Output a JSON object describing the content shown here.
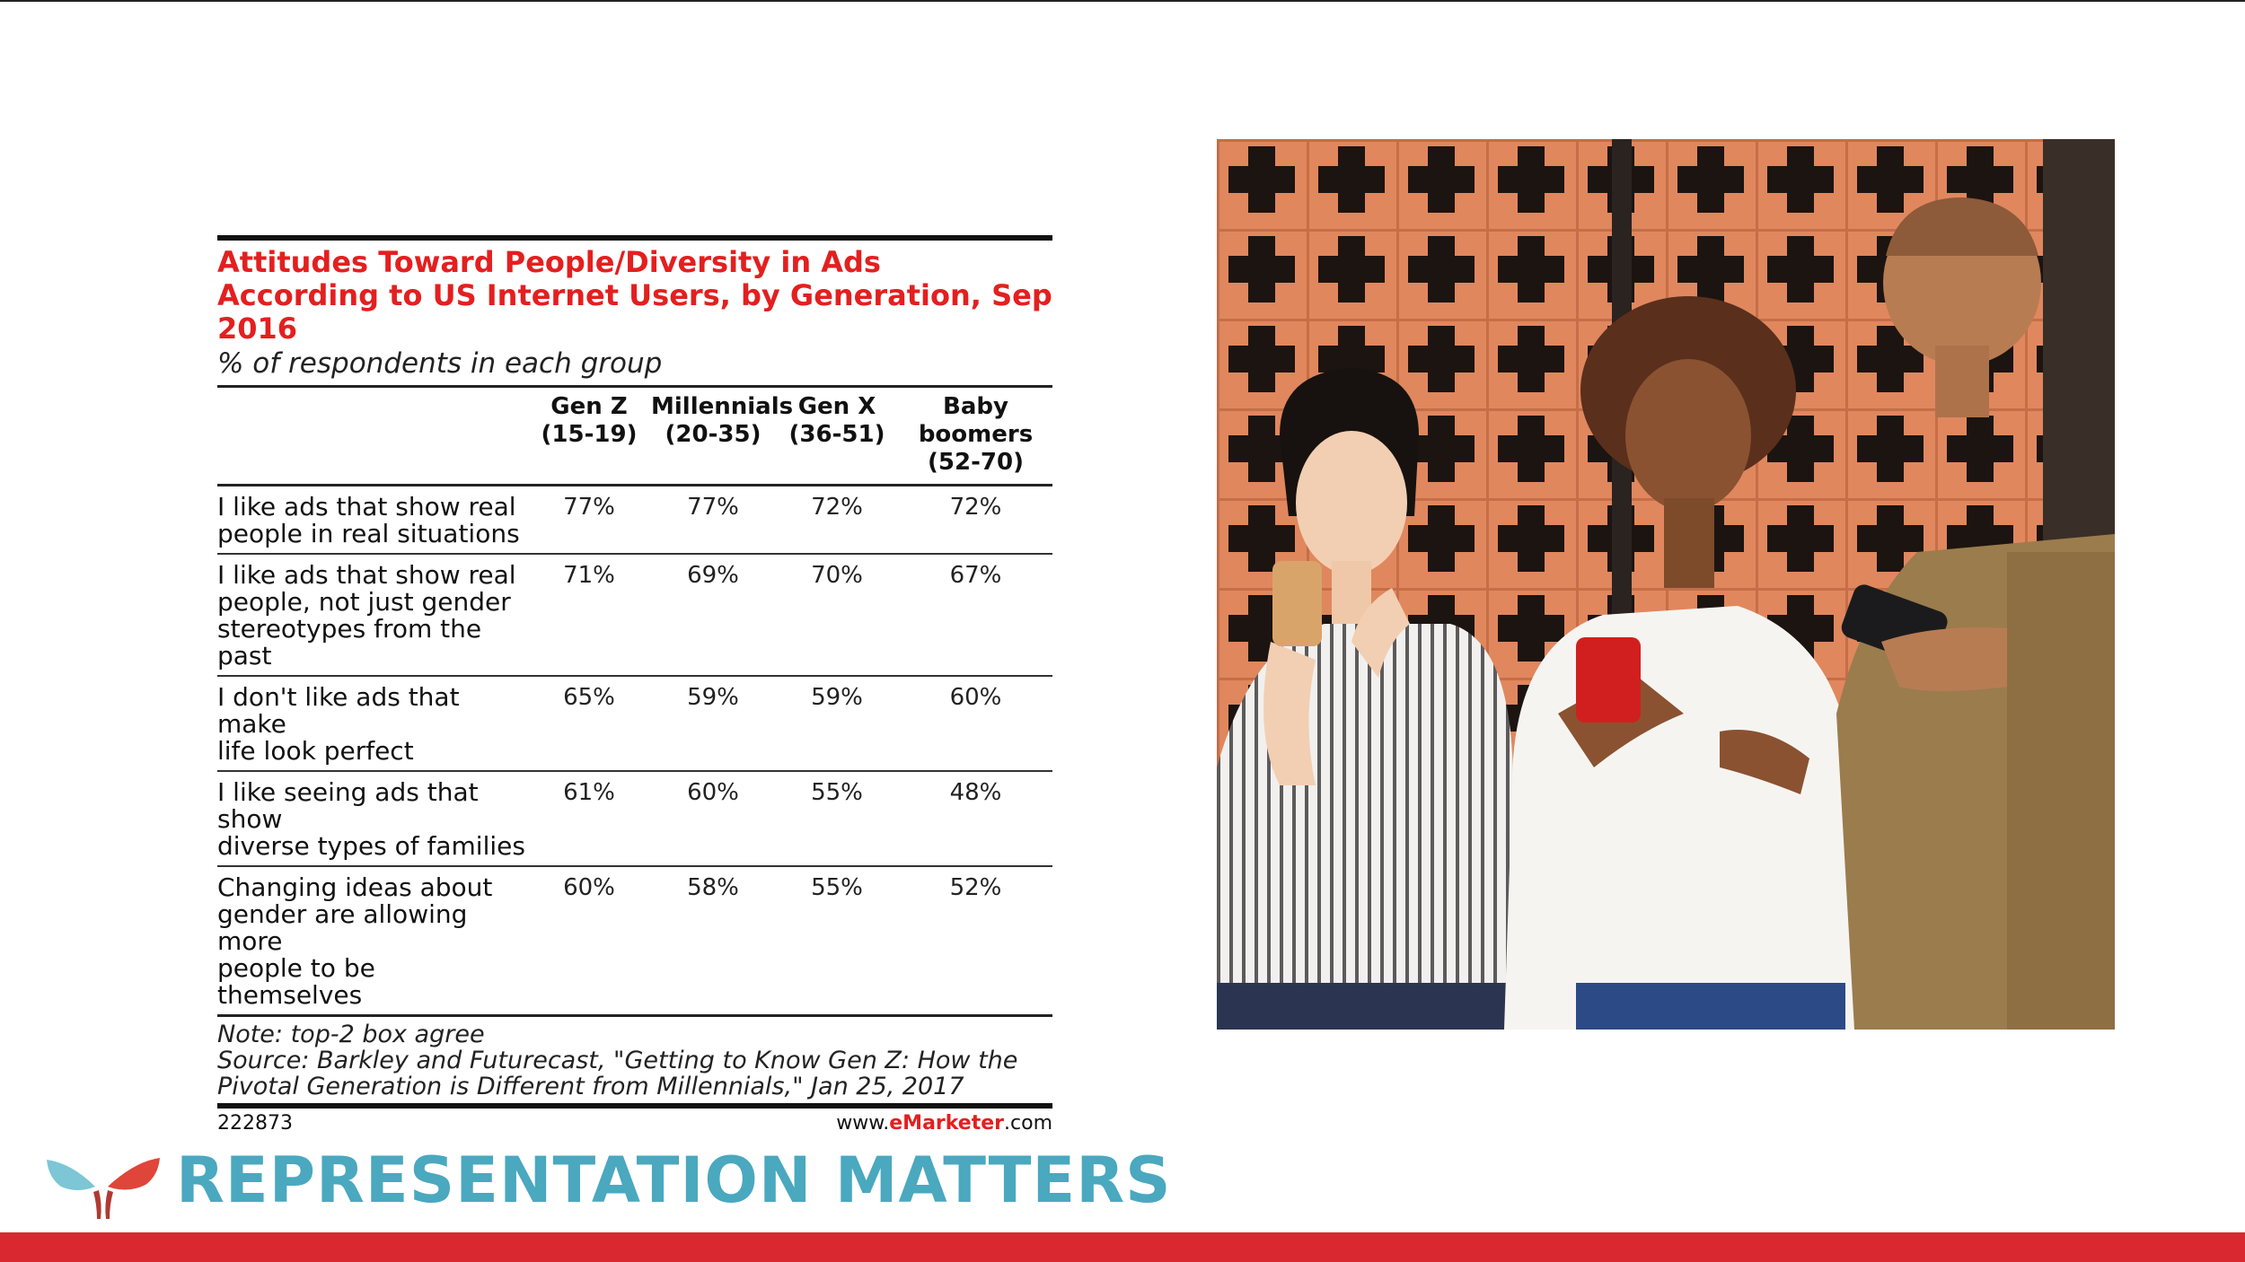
{
  "chart_data": {
    "type": "table",
    "title": "Attitudes Toward People/Diversity in Ads According to US Internet Users, by Generation, Sep 2016",
    "subtitle": "% of respondents in each group",
    "columns": [
      {
        "name": "Gen Z",
        "range": "(15-19)"
      },
      {
        "name": "Millennials",
        "range": "(20-35)"
      },
      {
        "name": "Gen X",
        "range": "(36-51)"
      },
      {
        "name": "Baby boomers",
        "range": "(52-70)"
      }
    ],
    "rows": [
      {
        "label": [
          "I like ads that show real",
          "people in real situations"
        ],
        "values": [
          "77%",
          "77%",
          "72%",
          "72%"
        ]
      },
      {
        "label": [
          "I like ads that show real",
          "people, not just gender",
          "stereotypes from the past"
        ],
        "values": [
          "71%",
          "69%",
          "70%",
          "67%"
        ]
      },
      {
        "label": [
          "I don't like ads that make",
          "life look perfect"
        ],
        "values": [
          "65%",
          "59%",
          "59%",
          "60%"
        ]
      },
      {
        "label": [
          "I like seeing ads that show",
          "diverse types of families"
        ],
        "values": [
          "61%",
          "60%",
          "55%",
          "48%"
        ]
      },
      {
        "label": [
          "Changing ideas about",
          "gender are allowing more",
          "people to be themselves"
        ],
        "values": [
          "60%",
          "58%",
          "55%",
          "52%"
        ]
      }
    ],
    "note": "Note: top-2 box agree",
    "source": "Source: Barkley and Futurecast, \"Getting to Know Gen Z: How the Pivotal Generation is Different from Millennials,\" Jan 25, 2017",
    "chart_id": "222873",
    "brand": {
      "prefix": "www.",
      "name": "eMarketer",
      "suffix": ".com"
    }
  },
  "slide": {
    "headline": "REPRESENTATION MATTERS",
    "photo_icon": "photo-three-people-using-smartphones",
    "logo_icon": "butterfly-logo-icon",
    "colors": {
      "accent_red": "#d9282f",
      "headline_teal": "#4aa8bf",
      "title_red": "#e41f1f"
    }
  }
}
